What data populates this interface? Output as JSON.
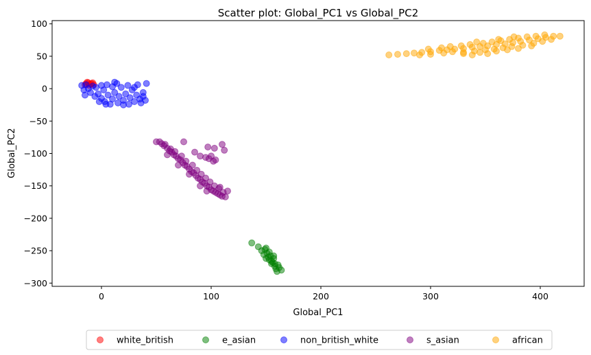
{
  "chart_data": {
    "type": "scatter",
    "title": "Scatter plot: Global_PC1 vs Global_PC2",
    "xlabel": "Global_PC1",
    "ylabel": "Global_PC2",
    "xlim": [
      -45,
      440
    ],
    "ylim": [
      -305,
      105
    ],
    "xticks": [
      0,
      100,
      200,
      300,
      400
    ],
    "yticks": [
      100,
      50,
      0,
      -50,
      -100,
      -150,
      -200,
      -250,
      -300
    ],
    "grid": false,
    "legend_position": "bottom-center",
    "series": [
      {
        "name": "white_british",
        "color": "#ff0000",
        "points": [
          [
            -14,
            8
          ],
          [
            -12,
            9
          ],
          [
            -10,
            7
          ],
          [
            -8,
            9
          ],
          [
            -15,
            6
          ],
          [
            -11,
            5
          ],
          [
            -9,
            8
          ],
          [
            -13,
            10
          ],
          [
            -7,
            6
          ]
        ]
      },
      {
        "name": "e_asian",
        "color": "#008000",
        "points": [
          [
            137,
            -238
          ],
          [
            143,
            -244
          ],
          [
            146,
            -250
          ],
          [
            148,
            -256
          ],
          [
            150,
            -246
          ],
          [
            152,
            -260
          ],
          [
            153,
            -252
          ],
          [
            155,
            -266
          ],
          [
            155,
            -270
          ],
          [
            157,
            -262
          ],
          [
            158,
            -274
          ],
          [
            159,
            -278
          ],
          [
            160,
            -282
          ],
          [
            162,
            -276
          ],
          [
            164,
            -280
          ],
          [
            150,
            -262
          ],
          [
            154,
            -258
          ],
          [
            156,
            -268
          ],
          [
            158,
            -270
          ],
          [
            161,
            -272
          ],
          [
            149,
            -248
          ],
          [
            151,
            -254
          ],
          [
            157,
            -258
          ],
          [
            153,
            -264
          ]
        ]
      },
      {
        "name": "non_british_white",
        "color": "#0000ff",
        "points": [
          [
            -18,
            5
          ],
          [
            -16,
            -2
          ],
          [
            -14,
            6
          ],
          [
            -12,
            0
          ],
          [
            -10,
            -6
          ],
          [
            -8,
            4
          ],
          [
            -6,
            -12
          ],
          [
            -5,
            2
          ],
          [
            -3,
            -8
          ],
          [
            0,
            5
          ],
          [
            0,
            -15
          ],
          [
            2,
            -2
          ],
          [
            3,
            -20
          ],
          [
            5,
            6
          ],
          [
            6,
            -10
          ],
          [
            8,
            -24
          ],
          [
            10,
            3
          ],
          [
            10,
            -16
          ],
          [
            12,
            -6
          ],
          [
            14,
            8
          ],
          [
            15,
            -22
          ],
          [
            16,
            -12
          ],
          [
            18,
            2
          ],
          [
            20,
            -18
          ],
          [
            22,
            -8
          ],
          [
            24,
            5
          ],
          [
            25,
            -24
          ],
          [
            26,
            -14
          ],
          [
            28,
            -2
          ],
          [
            30,
            -20
          ],
          [
            32,
            -10
          ],
          [
            33,
            6
          ],
          [
            35,
            -16
          ],
          [
            36,
            -22
          ],
          [
            38,
            -6
          ],
          [
            40,
            -18
          ],
          [
            41,
            8
          ],
          [
            -15,
            -10
          ],
          [
            4,
            -24
          ],
          [
            20,
            -25
          ],
          [
            -2,
            -20
          ],
          [
            12,
            10
          ],
          [
            30,
            2
          ],
          [
            38,
            -12
          ]
        ]
      },
      {
        "name": "s_asian",
        "color": "#800080",
        "points": [
          [
            50,
            -82
          ],
          [
            53,
            -82
          ],
          [
            55,
            -85
          ],
          [
            57,
            -88
          ],
          [
            60,
            -92
          ],
          [
            62,
            -96
          ],
          [
            64,
            -98
          ],
          [
            66,
            -102
          ],
          [
            68,
            -104
          ],
          [
            70,
            -108
          ],
          [
            72,
            -110
          ],
          [
            74,
            -114
          ],
          [
            76,
            -118
          ],
          [
            78,
            -120
          ],
          [
            80,
            -124
          ],
          [
            82,
            -128
          ],
          [
            84,
            -130
          ],
          [
            86,
            -134
          ],
          [
            88,
            -138
          ],
          [
            90,
            -140
          ],
          [
            92,
            -144
          ],
          [
            94,
            -146
          ],
          [
            96,
            -150
          ],
          [
            98,
            -152
          ],
          [
            100,
            -156
          ],
          [
            102,
            -158
          ],
          [
            104,
            -160
          ],
          [
            106,
            -162
          ],
          [
            108,
            -164
          ],
          [
            110,
            -166
          ],
          [
            113,
            -167
          ],
          [
            58,
            -86
          ],
          [
            63,
            -93
          ],
          [
            67,
            -97
          ],
          [
            73,
            -104
          ],
          [
            77,
            -112
          ],
          [
            83,
            -118
          ],
          [
            87,
            -126
          ],
          [
            91,
            -132
          ],
          [
            95,
            -138
          ],
          [
            99,
            -144
          ],
          [
            103,
            -150
          ],
          [
            107,
            -154
          ],
          [
            111,
            -160
          ],
          [
            75,
            -82
          ],
          [
            85,
            -98
          ],
          [
            90,
            -104
          ],
          [
            95,
            -106
          ],
          [
            98,
            -108
          ],
          [
            100,
            -104
          ],
          [
            102,
            -112
          ],
          [
            104,
            -110
          ],
          [
            97,
            -90
          ],
          [
            103,
            -92
          ],
          [
            110,
            -86
          ],
          [
            112,
            -95
          ],
          [
            115,
            -158
          ],
          [
            60,
            -102
          ],
          [
            70,
            -118
          ],
          [
            80,
            -132
          ],
          [
            90,
            -150
          ],
          [
            96,
            -158
          ],
          [
            108,
            -152
          ]
        ]
      },
      {
        "name": "african",
        "color": "#ffa500",
        "points": [
          [
            262,
            52
          ],
          [
            270,
            53
          ],
          [
            278,
            54
          ],
          [
            285,
            55
          ],
          [
            292,
            56
          ],
          [
            300,
            57
          ],
          [
            308,
            59
          ],
          [
            315,
            60
          ],
          [
            322,
            61
          ],
          [
            330,
            62
          ],
          [
            338,
            64
          ],
          [
            345,
            65
          ],
          [
            352,
            66
          ],
          [
            360,
            68
          ],
          [
            368,
            69
          ],
          [
            375,
            71
          ],
          [
            382,
            73
          ],
          [
            390,
            75
          ],
          [
            398,
            77
          ],
          [
            405,
            79
          ],
          [
            412,
            81
          ],
          [
            418,
            81
          ],
          [
            290,
            52
          ],
          [
            300,
            53
          ],
          [
            312,
            55
          ],
          [
            320,
            57
          ],
          [
            330,
            56
          ],
          [
            340,
            58
          ],
          [
            350,
            60
          ],
          [
            358,
            61
          ],
          [
            366,
            63
          ],
          [
            374,
            65
          ],
          [
            384,
            67
          ],
          [
            394,
            70
          ],
          [
            402,
            73
          ],
          [
            410,
            76
          ],
          [
            298,
            61
          ],
          [
            310,
            63
          ],
          [
            318,
            65
          ],
          [
            328,
            66
          ],
          [
            336,
            68
          ],
          [
            348,
            70
          ],
          [
            356,
            72
          ],
          [
            364,
            74
          ],
          [
            372,
            76
          ],
          [
            380,
            78
          ],
          [
            388,
            80
          ],
          [
            396,
            81
          ],
          [
            404,
            83
          ],
          [
            330,
            54
          ],
          [
            345,
            56
          ],
          [
            360,
            58
          ],
          [
            370,
            60
          ],
          [
            380,
            62
          ],
          [
            392,
            66
          ],
          [
            338,
            52
          ],
          [
            352,
            54
          ],
          [
            342,
            72
          ],
          [
            362,
            76
          ],
          [
            376,
            80
          ]
        ]
      }
    ]
  }
}
